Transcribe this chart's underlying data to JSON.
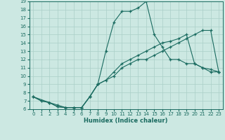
{
  "title": "",
  "xlabel": "Humidex (Indice chaleur)",
  "xlim": [
    -0.5,
    23.5
  ],
  "ylim": [
    6,
    19
  ],
  "xticks": [
    0,
    1,
    2,
    3,
    4,
    5,
    6,
    7,
    8,
    9,
    10,
    11,
    12,
    13,
    14,
    15,
    16,
    17,
    18,
    19,
    20,
    21,
    22,
    23
  ],
  "yticks": [
    6,
    7,
    8,
    9,
    10,
    11,
    12,
    13,
    14,
    15,
    16,
    17,
    18,
    19
  ],
  "bg_color": "#cce8e2",
  "grid_color": "#aacfc8",
  "line_color": "#1a6b60",
  "lines": [
    {
      "x": [
        0,
        1,
        2,
        3,
        4,
        5,
        6,
        7,
        8,
        10,
        11,
        12,
        13,
        14,
        15,
        16,
        17,
        18,
        19,
        20,
        21,
        22,
        23
      ],
      "y": [
        7.5,
        7.0,
        6.8,
        6.5,
        6.2,
        6.2,
        6.2,
        7.5,
        9.0,
        10.0,
        11.0,
        11.5,
        12.0,
        12.0,
        12.5,
        13.0,
        13.5,
        14.0,
        14.5,
        15.0,
        15.5,
        15.5,
        10.5
      ]
    },
    {
      "x": [
        0,
        1,
        2,
        3,
        4,
        5,
        6,
        7,
        8,
        9,
        10,
        11,
        12,
        13,
        14,
        15,
        16,
        17,
        18,
        19,
        20,
        21,
        22,
        23
      ],
      "y": [
        7.5,
        7.0,
        6.8,
        6.3,
        6.2,
        6.2,
        6.2,
        7.5,
        9.0,
        9.5,
        10.5,
        11.5,
        12.0,
        12.5,
        13.0,
        13.5,
        14.0,
        14.2,
        14.5,
        15.0,
        11.5,
        11.0,
        10.5,
        10.5
      ]
    },
    {
      "x": [
        0,
        2,
        3,
        4,
        5,
        6,
        7,
        8,
        9,
        10,
        11,
        12,
        13,
        14,
        15,
        16,
        17,
        18,
        19,
        20,
        21,
        22,
        23
      ],
      "y": [
        7.5,
        6.8,
        6.3,
        6.2,
        6.2,
        6.2,
        7.5,
        9.0,
        13.0,
        16.5,
        17.8,
        17.8,
        18.2,
        19.0,
        15.0,
        13.5,
        12.0,
        12.0,
        11.5,
        11.5,
        11.0,
        10.8,
        10.5
      ]
    }
  ]
}
